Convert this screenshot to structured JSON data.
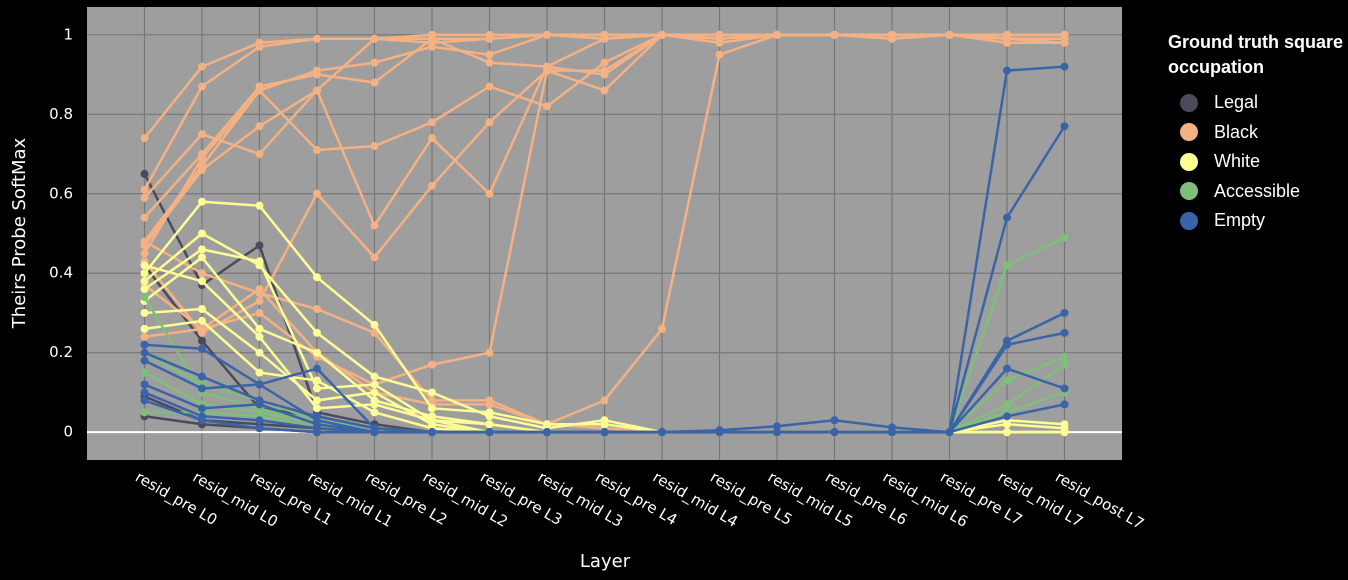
{
  "chart_data": {
    "type": "line",
    "xlabel": "Layer",
    "ylabel": "Theirs Probe SoftMax",
    "legend_title": "Ground truth square occupation",
    "categories": [
      "resid_pre L0",
      "resid_mid L0",
      "resid_pre L1",
      "resid_mid L1",
      "resid_pre L2",
      "resid_mid L2",
      "resid_pre L3",
      "resid_mid L3",
      "resid_pre L4",
      "resid_mid L4",
      "resid_pre L5",
      "resid_mid L5",
      "resid_pre L6",
      "resid_mid L6",
      "resid_pre L7",
      "resid_mid L7",
      "resid_post L7"
    ],
    "ylim": [
      -0.07,
      1.07
    ],
    "yticks": [
      0,
      0.2,
      0.4,
      0.6,
      0.8,
      1
    ],
    "grid": true,
    "series": [
      {
        "name": "Legal",
        "color": "#4b4a5b",
        "values": [
          0.65,
          0.37,
          0.47,
          0.05,
          0.02,
          0,
          0,
          0,
          0,
          0,
          0,
          0,
          0,
          0,
          0,
          0,
          0
        ]
      },
      {
        "name": "Legal",
        "color": "#4b4a5b",
        "values": [
          0.42,
          0.23,
          0.06,
          0.04,
          0.01,
          0,
          0,
          0,
          0,
          0,
          0,
          0,
          0,
          0,
          0,
          0,
          0
        ]
      },
      {
        "name": "Legal",
        "color": "#4b4a5b",
        "values": [
          0.09,
          0.03,
          0.02,
          0.01,
          0,
          0,
          0,
          0,
          0,
          0,
          0,
          0,
          0,
          0,
          0,
          0,
          0
        ]
      },
      {
        "name": "Legal",
        "color": "#4b4a5b",
        "values": [
          0.04,
          0.02,
          0.01,
          0,
          0,
          0,
          0,
          0,
          0,
          0,
          0,
          0,
          0,
          0,
          0,
          0,
          0
        ]
      },
      {
        "name": "Black",
        "color": "#f4b183",
        "values": [
          0.74,
          0.92,
          0.98,
          0.99,
          0.99,
          1,
          1,
          1,
          1,
          1,
          1,
          1,
          1,
          1,
          1,
          1,
          1
        ]
      },
      {
        "name": "Black",
        "color": "#f4b183",
        "values": [
          0.61,
          0.87,
          0.97,
          0.99,
          0.99,
          0.99,
          0.99,
          1,
          1,
          1,
          1,
          1,
          1,
          1,
          1,
          0.99,
          0.99
        ]
      },
      {
        "name": "Black",
        "color": "#f4b183",
        "values": [
          0.59,
          0.75,
          0.7,
          0.86,
          0.99,
          0.98,
          0.99,
          1,
          1,
          1,
          1,
          1,
          1,
          1,
          1,
          1,
          1
        ]
      },
      {
        "name": "Black",
        "color": "#f4b183",
        "values": [
          0.54,
          0.7,
          0.87,
          0.9,
          0.88,
          0.99,
          0.93,
          0.92,
          0.99,
          1,
          0.98,
          1,
          1,
          1,
          1,
          0.99,
          0.98
        ]
      },
      {
        "name": "Black",
        "color": "#f4b183",
        "values": [
          0.48,
          0.67,
          0.86,
          0.91,
          0.93,
          0.97,
          0.95,
          1,
          0.99,
          1,
          1,
          1,
          1,
          0.99,
          1,
          0.98,
          0.98
        ]
      },
      {
        "name": "Black",
        "color": "#f4b183",
        "values": [
          0.47,
          0.66,
          0.77,
          0.86,
          0.52,
          0.74,
          0.6,
          0.92,
          0.9,
          1,
          1,
          1,
          1,
          1,
          1,
          1,
          1
        ]
      },
      {
        "name": "Black",
        "color": "#f4b183",
        "values": [
          0.45,
          0.69,
          0.86,
          0.71,
          0.72,
          0.78,
          0.87,
          0.82,
          0.93,
          1,
          1,
          1,
          1,
          1,
          1,
          1,
          1
        ]
      },
      {
        "name": "Black",
        "color": "#f4b183",
        "values": [
          0.43,
          0.25,
          0.33,
          0.6,
          0.44,
          0.62,
          0.78,
          0.91,
          0.86,
          1,
          1,
          1,
          1,
          1,
          1,
          1,
          1
        ]
      },
      {
        "name": "Black",
        "color": "#f4b183",
        "values": [
          0.48,
          0.4,
          0.35,
          0.31,
          0.25,
          0.08,
          0.08,
          0.02,
          0.08,
          0.26,
          0.95,
          1,
          1,
          1,
          1,
          1,
          1
        ]
      },
      {
        "name": "Black",
        "color": "#f4b183",
        "values": [
          0.37,
          0.26,
          0.3,
          0.19,
          0.12,
          0.17,
          0.2,
          0.91,
          0.91,
          1,
          0.99,
          1,
          1,
          1,
          1,
          1,
          1
        ]
      },
      {
        "name": "Black",
        "color": "#f4b183",
        "values": [
          0.24,
          0.26,
          0.36,
          0.2,
          0.1,
          0.07,
          0.07,
          0.02,
          0.01,
          0,
          0,
          0,
          0,
          0,
          0,
          0,
          0
        ]
      },
      {
        "name": "White",
        "color": "#fdfd96",
        "values": [
          0.4,
          0.58,
          0.57,
          0.39,
          0.27,
          0.06,
          0.05,
          0.02,
          0.02,
          0,
          0,
          0,
          0,
          0,
          0,
          0.02,
          0.01
        ]
      },
      {
        "name": "White",
        "color": "#fdfd96",
        "values": [
          0.38,
          0.5,
          0.42,
          0.25,
          0.14,
          0.1,
          0.04,
          0.01,
          0.03,
          0,
          0,
          0,
          0,
          0,
          0,
          0.03,
          0.02
        ]
      },
      {
        "name": "White",
        "color": "#fdfd96",
        "values": [
          0.36,
          0.46,
          0.43,
          0.11,
          0.12,
          0.03,
          0.02,
          0,
          0,
          0,
          0,
          0,
          0,
          0,
          0,
          0,
          0
        ]
      },
      {
        "name": "White",
        "color": "#fdfd96",
        "values": [
          0.33,
          0.44,
          0.26,
          0.2,
          0.08,
          0.04,
          0.02,
          0,
          0,
          0,
          0,
          0,
          0,
          0,
          0,
          0,
          0
        ]
      },
      {
        "name": "White",
        "color": "#fdfd96",
        "values": [
          0.3,
          0.31,
          0.2,
          0.08,
          0.1,
          0.02,
          0,
          0,
          0,
          0,
          0,
          0,
          0,
          0,
          0,
          0,
          0
        ]
      },
      {
        "name": "White",
        "color": "#fdfd96",
        "values": [
          0.26,
          0.28,
          0.15,
          0.13,
          0.05,
          0.01,
          0,
          0,
          0,
          0,
          0,
          0,
          0,
          0,
          0,
          0,
          0
        ]
      },
      {
        "name": "White",
        "color": "#fdfd96",
        "values": [
          0.42,
          0.38,
          0.24,
          0.06,
          0.07,
          0.03,
          0,
          0,
          0,
          0,
          0,
          0,
          0,
          0,
          0,
          0,
          0
        ]
      },
      {
        "name": "Accessible",
        "color": "#7fbf7b",
        "values": [
          0.34,
          0.1,
          0.06,
          0.02,
          0,
          0,
          0,
          0,
          0,
          0,
          0,
          0,
          0,
          0,
          0,
          0.42,
          0.49
        ]
      },
      {
        "name": "Accessible",
        "color": "#7fbf7b",
        "values": [
          0.15,
          0.07,
          0.05,
          0.02,
          0,
          0,
          0,
          0,
          0,
          0,
          0,
          0,
          0,
          0,
          0,
          0.13,
          0.19
        ]
      },
      {
        "name": "Accessible",
        "color": "#7fbf7b",
        "values": [
          0.05,
          0.05,
          0.04,
          0.01,
          0,
          0,
          0,
          0,
          0,
          0,
          0,
          0,
          0,
          0,
          0,
          0.07,
          0.17
        ]
      },
      {
        "name": "Accessible",
        "color": "#7fbf7b",
        "values": [
          0.2,
          0.12,
          0.08,
          0.03,
          0.01,
          0,
          0,
          0,
          0,
          0,
          0,
          0,
          0,
          0,
          0,
          0.05,
          0.1
        ]
      },
      {
        "name": "Empty",
        "color": "#3b63a8",
        "values": [
          0.22,
          0.21,
          0.12,
          0.16,
          0.01,
          0,
          0,
          0,
          0,
          0,
          0.005,
          0.015,
          0.03,
          0.012,
          0,
          0.91,
          0.92
        ]
      },
      {
        "name": "Empty",
        "color": "#3b63a8",
        "values": [
          0.2,
          0.14,
          0.08,
          0.04,
          0.01,
          0,
          0,
          0,
          0,
          0,
          0,
          0,
          0,
          0,
          0,
          0.54,
          0.77
        ]
      },
      {
        "name": "Empty",
        "color": "#3b63a8",
        "values": [
          0.18,
          0.11,
          0.12,
          0.03,
          0,
          0,
          0,
          0,
          0,
          0,
          0,
          0,
          0,
          0,
          0,
          0.23,
          0.3
        ]
      },
      {
        "name": "Empty",
        "color": "#3b63a8",
        "values": [
          0.12,
          0.06,
          0.07,
          0.02,
          0,
          0,
          0,
          0,
          0,
          0,
          0,
          0,
          0,
          0,
          0,
          0.22,
          0.25
        ]
      },
      {
        "name": "Empty",
        "color": "#3b63a8",
        "values": [
          0.1,
          0.04,
          0.03,
          0.01,
          0,
          0,
          0,
          0,
          0,
          0,
          0,
          0,
          0,
          0,
          0,
          0.16,
          0.11
        ]
      },
      {
        "name": "Empty",
        "color": "#3b63a8",
        "values": [
          0.08,
          0.03,
          0.01,
          0,
          0,
          0,
          0,
          0,
          0,
          0,
          0,
          0,
          0,
          0,
          0,
          0.04,
          0.07
        ]
      }
    ]
  }
}
